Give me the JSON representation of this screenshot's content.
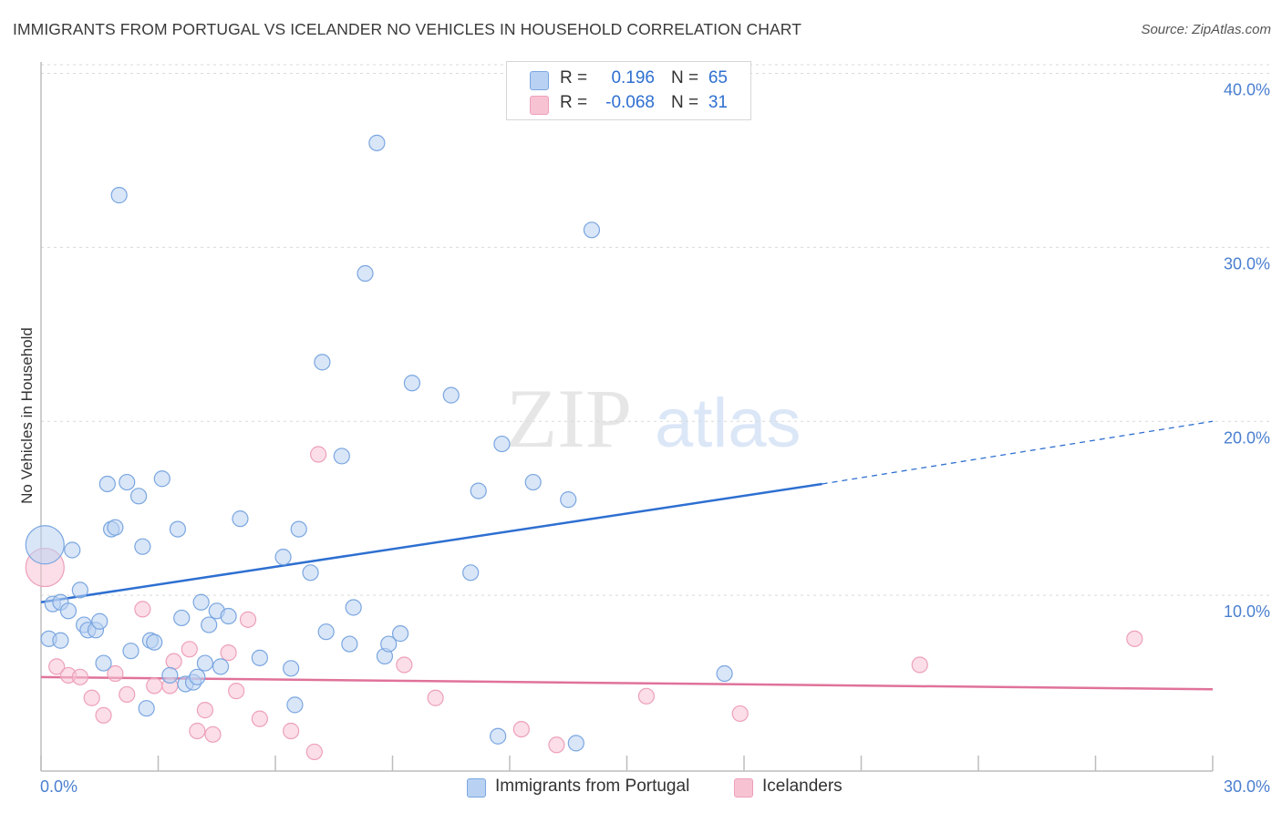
{
  "title": "IMMIGRANTS FROM PORTUGAL VS ICELANDER NO VEHICLES IN HOUSEHOLD CORRELATION CHART",
  "source": "Source: ZipAtlas.com",
  "watermark": {
    "zip": "ZIP",
    "atlas": "atlas"
  },
  "colors": {
    "blue": "#2e6fd1",
    "blue_fill": "#b9d2f3",
    "blue_stroke": "#7aa6e0",
    "pink": "#e0729a",
    "pink_fill": "#f7c3d3",
    "pink_stroke": "#eda0ba",
    "grid": "#d9d9d9",
    "tick_label": "#4a7fd0"
  },
  "legend": {
    "rows": [
      {
        "r_label": "R =",
        "r_value": "0.196",
        "n_label": "N =",
        "n_value": "65"
      },
      {
        "r_label": "R =",
        "r_value": "-0.068",
        "n_label": "N =",
        "n_value": "31"
      }
    ]
  },
  "bottom_legend": {
    "items": [
      {
        "label": "Immigrants from Portugal"
      },
      {
        "label": "Icelanders"
      }
    ]
  },
  "chart_data": {
    "type": "scatter",
    "xlabel": "",
    "ylabel": "No Vehicles in Household",
    "xlim": [
      0,
      30
    ],
    "ylim": [
      0,
      40
    ],
    "x_tick_labels": [
      "0.0%",
      "30.0%"
    ],
    "y_tick_labels": [
      "10.0%",
      "20.0%",
      "30.0%",
      "40.0%"
    ],
    "y_tick_values": [
      10,
      20,
      30,
      40
    ],
    "grid": "horizontal dashed",
    "legend_placement": "top-center",
    "series": [
      {
        "name": "Immigrants from Portugal",
        "color": "#2e6fd1",
        "R": 0.196,
        "N": 65,
        "trend": {
          "x0": 0,
          "y0": 9.6,
          "x1": 20.0,
          "y1": 16.4,
          "dashed_to_x": 30,
          "dashed_to_y": 20.0
        },
        "points": [
          [
            0.1,
            12.9,
            "large"
          ],
          [
            0.2,
            7.5
          ],
          [
            0.3,
            9.5
          ],
          [
            0.5,
            9.6
          ],
          [
            0.5,
            7.4
          ],
          [
            0.7,
            9.1
          ],
          [
            0.8,
            12.6
          ],
          [
            1.0,
            10.3
          ],
          [
            1.1,
            8.3
          ],
          [
            1.2,
            8.0
          ],
          [
            1.4,
            8.0
          ],
          [
            1.5,
            8.5
          ],
          [
            1.6,
            6.1
          ],
          [
            1.7,
            16.4
          ],
          [
            1.8,
            13.8
          ],
          [
            1.9,
            13.9
          ],
          [
            2.0,
            33.0
          ],
          [
            2.2,
            16.5
          ],
          [
            2.3,
            6.8
          ],
          [
            2.5,
            15.7
          ],
          [
            2.6,
            12.8
          ],
          [
            2.7,
            3.5
          ],
          [
            2.8,
            7.4
          ],
          [
            2.9,
            7.3
          ],
          [
            3.1,
            16.7
          ],
          [
            3.3,
            5.4
          ],
          [
            3.5,
            13.8
          ],
          [
            3.6,
            8.7
          ],
          [
            3.7,
            4.9
          ],
          [
            3.9,
            5.0
          ],
          [
            4.0,
            5.3
          ],
          [
            4.1,
            9.6
          ],
          [
            4.2,
            6.1
          ],
          [
            4.3,
            8.3
          ],
          [
            4.5,
            9.1
          ],
          [
            4.6,
            5.9
          ],
          [
            4.8,
            8.8
          ],
          [
            5.1,
            14.4
          ],
          [
            5.6,
            6.4
          ],
          [
            6.2,
            12.2
          ],
          [
            6.4,
            5.8
          ],
          [
            6.5,
            3.7
          ],
          [
            6.6,
            13.8
          ],
          [
            6.9,
            11.3
          ],
          [
            7.2,
            23.4
          ],
          [
            7.3,
            7.9
          ],
          [
            7.7,
            18.0
          ],
          [
            7.9,
            7.2
          ],
          [
            8.0,
            9.3
          ],
          [
            8.3,
            28.5
          ],
          [
            8.6,
            36.0
          ],
          [
            8.8,
            6.5
          ],
          [
            8.9,
            7.2
          ],
          [
            9.2,
            7.8
          ],
          [
            9.5,
            22.2
          ],
          [
            10.5,
            21.5
          ],
          [
            11.0,
            11.3
          ],
          [
            11.2,
            16.0
          ],
          [
            11.7,
            1.9
          ],
          [
            11.8,
            18.7
          ],
          [
            12.6,
            16.5
          ],
          [
            13.5,
            15.5
          ],
          [
            13.7,
            1.5
          ],
          [
            14.1,
            31.0
          ],
          [
            17.5,
            5.5
          ]
        ]
      },
      {
        "name": "Icelanders",
        "color": "#e0729a",
        "R": -0.068,
        "N": 31,
        "trend": {
          "x0": 0,
          "y0": 5.3,
          "x1": 30,
          "y1": 4.6
        },
        "points": [
          [
            0.1,
            11.6,
            "large"
          ],
          [
            0.4,
            5.9
          ],
          [
            0.7,
            5.4
          ],
          [
            1.0,
            5.3
          ],
          [
            1.3,
            4.1
          ],
          [
            1.6,
            3.1
          ],
          [
            1.9,
            5.5
          ],
          [
            2.2,
            4.3
          ],
          [
            2.6,
            9.2
          ],
          [
            2.9,
            4.8
          ],
          [
            3.3,
            4.8
          ],
          [
            3.4,
            6.2
          ],
          [
            3.8,
            6.9
          ],
          [
            4.0,
            2.2
          ],
          [
            4.2,
            3.4
          ],
          [
            4.4,
            2.0
          ],
          [
            4.8,
            6.7
          ],
          [
            5.0,
            4.5
          ],
          [
            5.3,
            8.6
          ],
          [
            5.6,
            2.9
          ],
          [
            6.4,
            2.2
          ],
          [
            7.0,
            1.0
          ],
          [
            7.1,
            18.1
          ],
          [
            9.3,
            6.0
          ],
          [
            10.1,
            4.1
          ],
          [
            12.3,
            2.3
          ],
          [
            13.2,
            1.4
          ],
          [
            15.5,
            4.2
          ],
          [
            17.9,
            3.2
          ],
          [
            22.5,
            6.0
          ],
          [
            28.0,
            7.5
          ]
        ]
      }
    ]
  }
}
